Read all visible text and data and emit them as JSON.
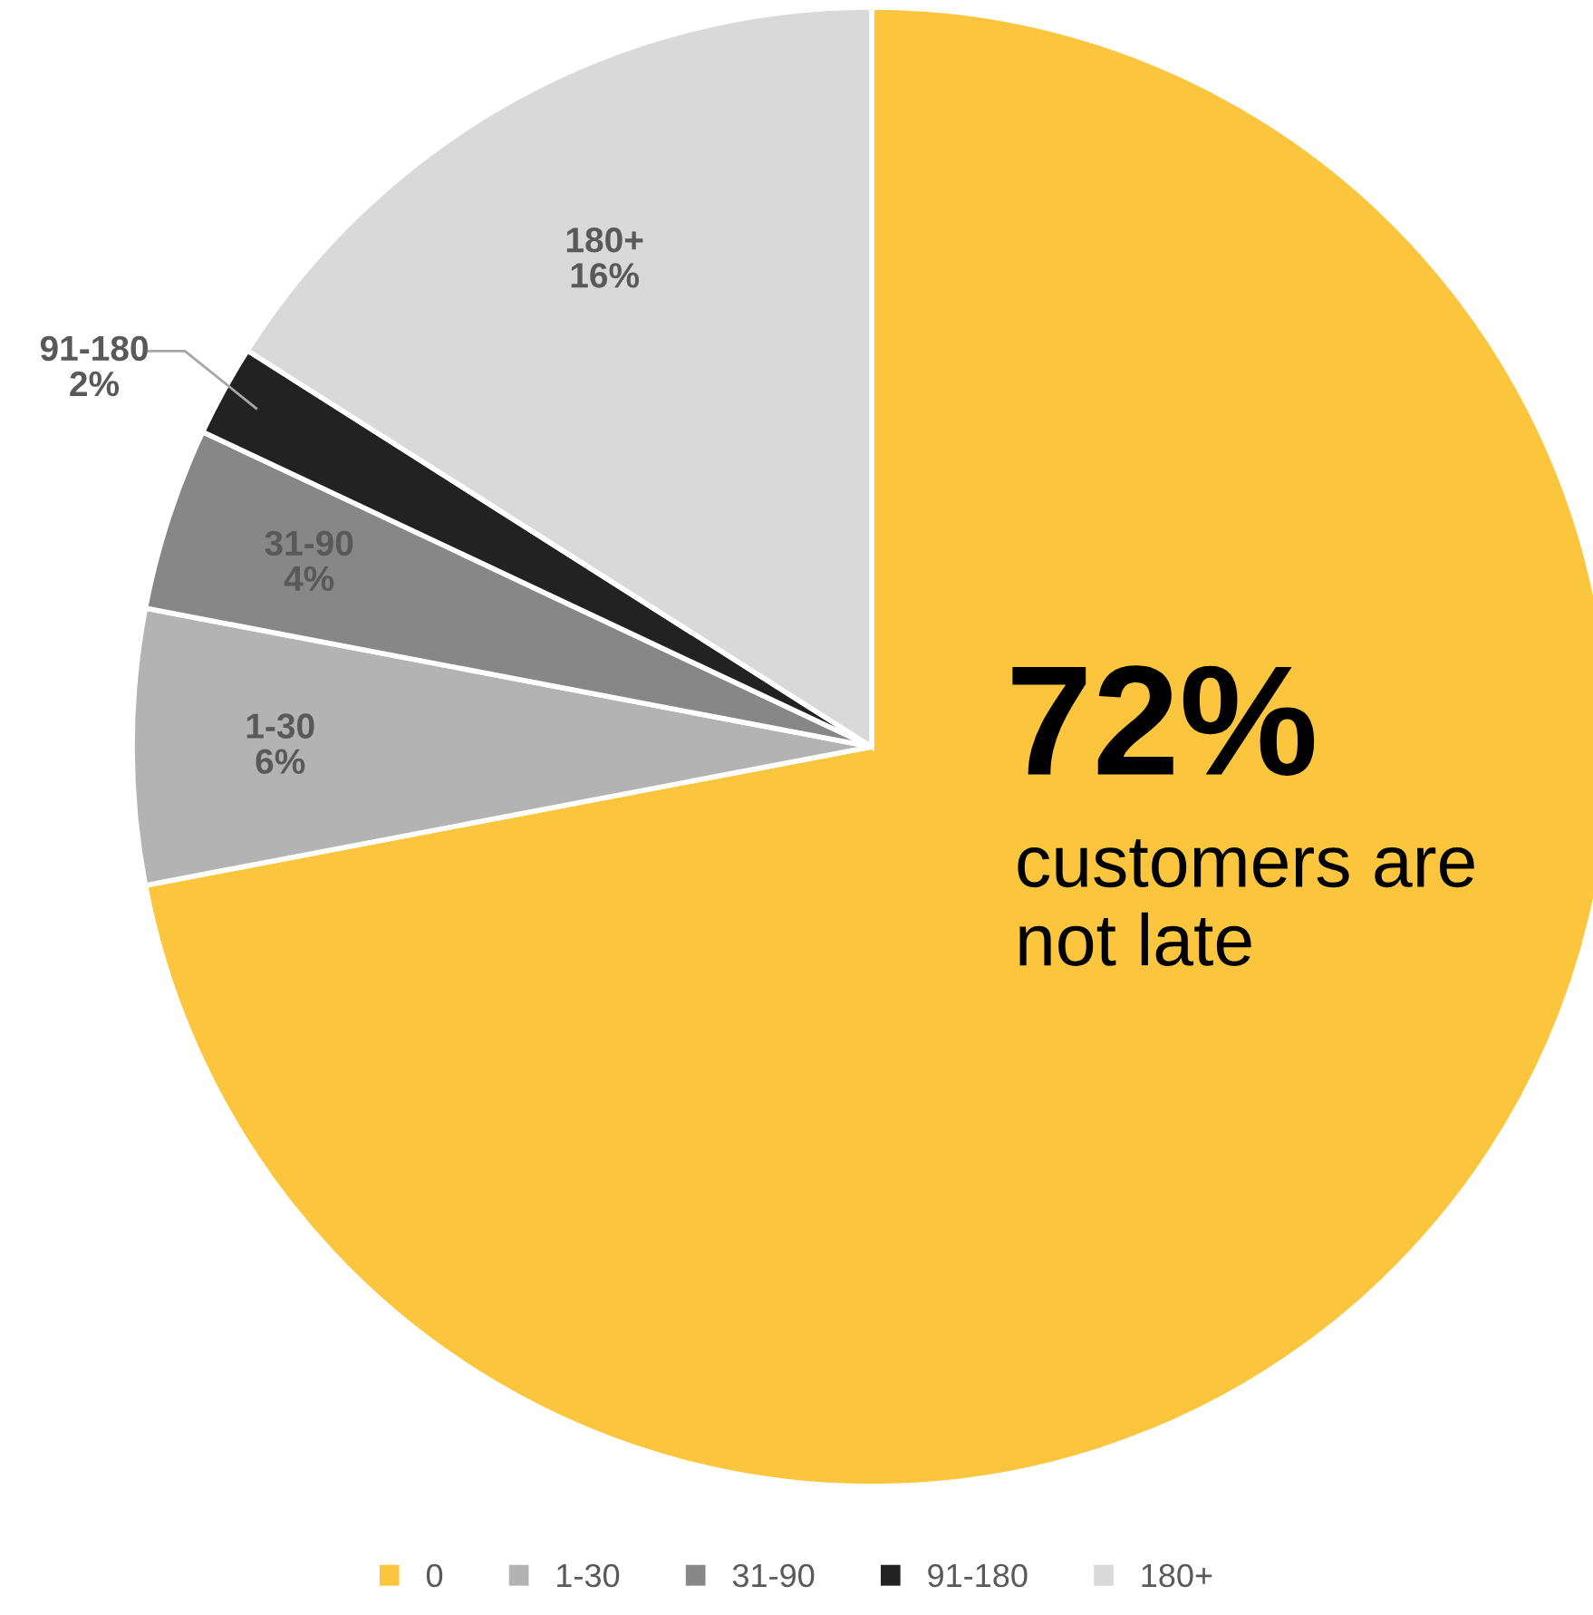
{
  "chart_data": {
    "type": "pie",
    "categories": [
      "0",
      "1-30",
      "31-90",
      "91-180",
      "180+"
    ],
    "values": [
      72,
      6,
      4,
      2,
      16
    ],
    "colors": [
      "#fbc63e",
      "#b3b3b3",
      "#878787",
      "#222222",
      "#d9d9d9"
    ],
    "value_labels": [
      null,
      "6%",
      "4%",
      "2%",
      "16%"
    ],
    "annotations": [
      "72%",
      "customers are not late"
    ],
    "legend": "bottom"
  }
}
